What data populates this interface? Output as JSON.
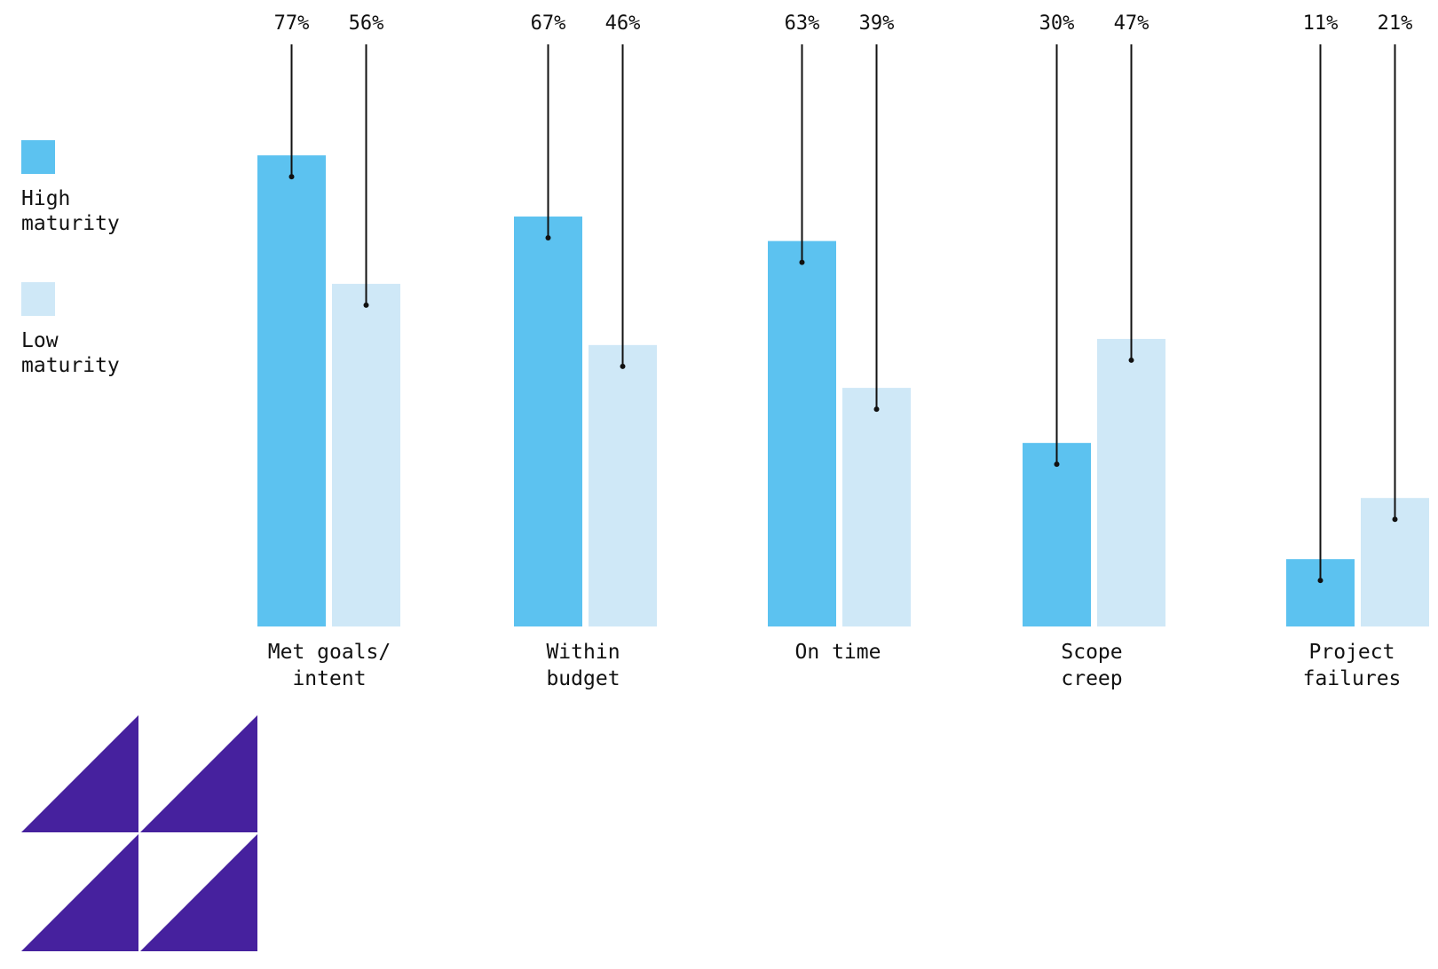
{
  "colors": {
    "high": "#5cc2f0",
    "low": "#cfe8f7",
    "logo": "#46219e",
    "leader": "#111111"
  },
  "legend": [
    {
      "label": "High\nmaturity",
      "color": "#5cc2f0"
    },
    {
      "label": "Low\nmaturity",
      "color": "#cfe8f7"
    }
  ],
  "chart_data": {
    "type": "bar",
    "categories": [
      "Met goals/\nintent",
      "Within\nbudget",
      "On time",
      "Scope\ncreep",
      "Project\nfailures"
    ],
    "series": [
      {
        "name": "High maturity",
        "values": [
          77,
          67,
          63,
          30,
          11
        ]
      },
      {
        "name": "Low maturity",
        "values": [
          56,
          46,
          39,
          47,
          21
        ]
      }
    ],
    "data_labels": [
      [
        "77%",
        "67%",
        "63%",
        "30%",
        "11%"
      ],
      [
        "56%",
        "46%",
        "39%",
        "47%",
        "21%"
      ]
    ],
    "ylim": [
      0,
      100
    ],
    "grid": false,
    "legend_position": "left",
    "title": "",
    "xlabel": "",
    "ylabel": ""
  },
  "logo": {
    "icon": "triangles-logo-icon"
  }
}
